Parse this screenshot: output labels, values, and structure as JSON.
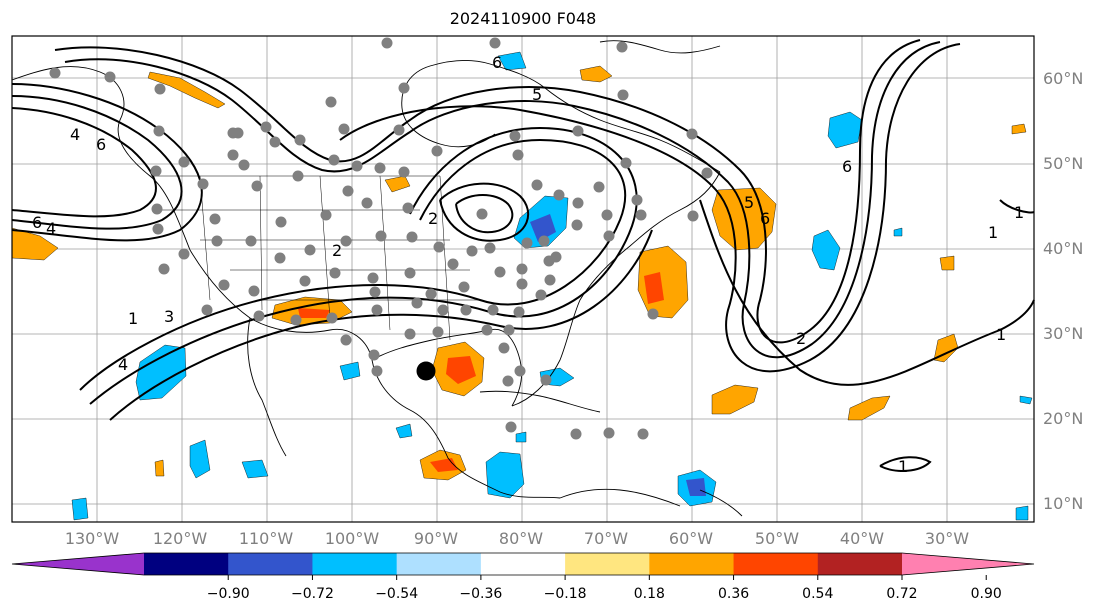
{
  "title": "2024110900 F048",
  "lat_labels": [
    "60°N",
    "50°N",
    "40°N",
    "30°N",
    "20°N",
    "10°N"
  ],
  "lon_labels": [
    "130°W",
    "120°W",
    "110°W",
    "100°W",
    "90°W",
    "80°W",
    "70°W",
    "60°W",
    "50°W",
    "40°W",
    "30°W"
  ],
  "contour_labels": [
    "6",
    "5",
    "4",
    "6",
    "6",
    "4",
    "6",
    "5",
    "2",
    "2",
    "1",
    "3",
    "4",
    "2",
    "1",
    "1",
    "1",
    "6",
    "1"
  ],
  "colorbar": {
    "tick_labels": [
      "−0.90",
      "−0.72",
      "−0.54",
      "−0.36",
      "−0.18",
      "0.18",
      "0.36",
      "0.54",
      "0.72",
      "0.90"
    ],
    "colors": [
      "#9933cc",
      "#000080",
      "#3355cc",
      "#00bfff",
      "#aee0ff",
      "#ffffff",
      "#ffe680",
      "#ffa500",
      "#ff4500",
      "#b22222",
      "#ff80b0"
    ]
  },
  "colors": {
    "contour": "#000000",
    "station_dot": "#808080",
    "marker": "#000000",
    "grid": "#9e9e9e"
  }
}
